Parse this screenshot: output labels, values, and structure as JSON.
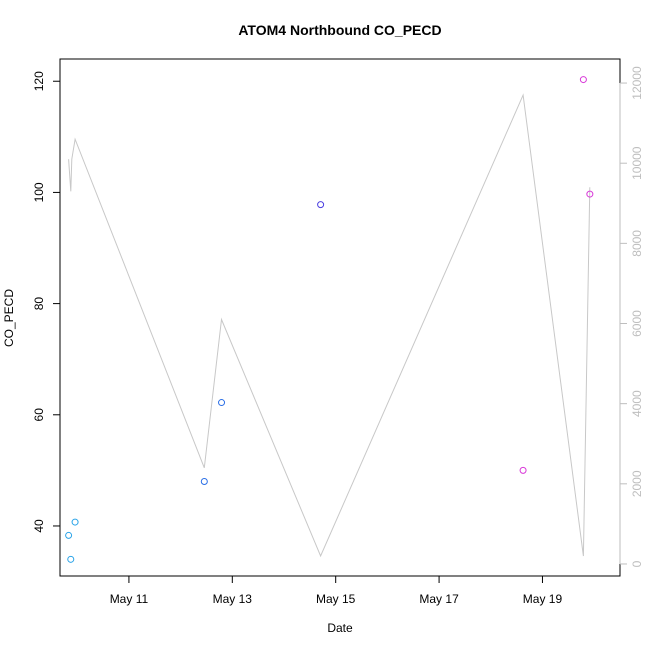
{
  "chart_data": {
    "type": "scatter",
    "title": "ATOM4 Northbound CO_PECD",
    "xlabel": "Date",
    "ylabel": "CO_PECD",
    "xlim": [
      "2022-05-09T16:00",
      "2022-05-20T12:00"
    ],
    "ylim": [
      31,
      124
    ],
    "x_ticks": [
      {
        "date": "2022-05-11",
        "label": "May 11"
      },
      {
        "date": "2022-05-13",
        "label": "May 13"
      },
      {
        "date": "2022-05-15",
        "label": "May 15"
      },
      {
        "date": "2022-05-17",
        "label": "May 17"
      },
      {
        "date": "2022-05-19",
        "label": "May 19"
      }
    ],
    "y_ticks": [
      40,
      60,
      80,
      100,
      120
    ],
    "y2_ticks": [
      0,
      2000,
      4000,
      6000,
      8000,
      10000,
      12000
    ],
    "y2lim": [
      -300,
      12600
    ],
    "grid": false,
    "points": [
      {
        "x": "2022-05-09T20:00",
        "y": 38.3,
        "color": "#29A3E8"
      },
      {
        "x": "2022-05-09T21:00",
        "y": 34.0,
        "color": "#29A3E8"
      },
      {
        "x": "2022-05-09T23:00",
        "y": 40.7,
        "color": "#29A3E8"
      },
      {
        "x": "2022-05-12T11:00",
        "y": 48.0,
        "color": "#2B6FE6"
      },
      {
        "x": "2022-05-12T19:00",
        "y": 62.2,
        "color": "#2B6FE6"
      },
      {
        "x": "2022-05-14T17:00",
        "y": 97.8,
        "color": "#4B3FE0"
      },
      {
        "x": "2022-05-18T15:00",
        "y": 50.0,
        "color": "#D837D8"
      },
      {
        "x": "2022-05-19T19:00",
        "y": 120.3,
        "color": "#D837D8"
      },
      {
        "x": "2022-05-19T22:00",
        "y": 99.7,
        "color": "#D837D8"
      }
    ],
    "line_series": {
      "axis": "right",
      "color": "#C8C8C8",
      "x": [
        "2022-05-09T20:00",
        "2022-05-09T21:00",
        "2022-05-09T21:30",
        "2022-05-09T23:00",
        "2022-05-12T11:00",
        "2022-05-12T19:00",
        "2022-05-14T17:00",
        "2022-05-18T15:00",
        "2022-05-19T19:00",
        "2022-05-19T22:00"
      ],
      "y": [
        10100,
        9300,
        10100,
        10600,
        2400,
        6100,
        200,
        11700,
        200,
        9400
      ]
    }
  }
}
